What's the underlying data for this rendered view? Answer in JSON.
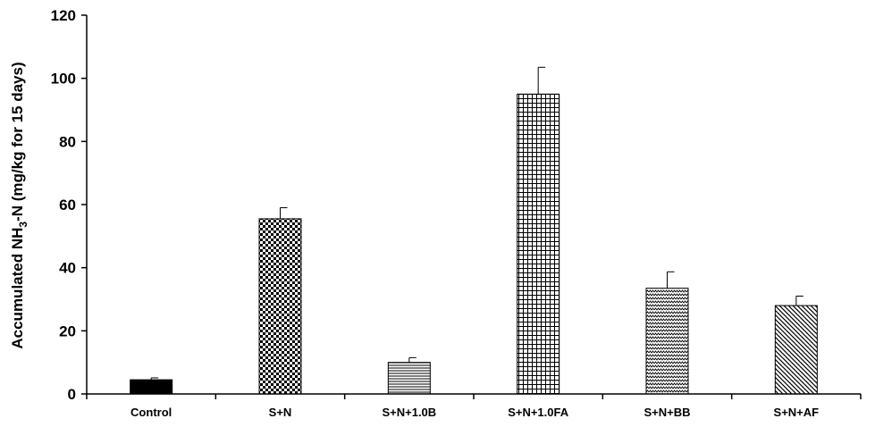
{
  "chart_data": {
    "type": "bar",
    "ylabel_parts": [
      "Accumulated NH",
      "3",
      "-N (mg/kg for 15 days)"
    ],
    "categories": [
      "Control",
      "S+N",
      "S+N+1.0B",
      "S+N+1.0FA",
      "S+N+BB",
      "S+N+AF"
    ],
    "values": [
      4.5,
      55.5,
      10.0,
      95.0,
      33.5,
      28.0
    ],
    "errors": [
      0.6,
      3.5,
      1.5,
      8.5,
      5.2,
      3.0
    ],
    "ylim": [
      0,
      120
    ],
    "yticks": [
      "0",
      "20",
      "40",
      "60",
      "80",
      "100",
      "120"
    ],
    "ytick_values": [
      0,
      20,
      40,
      60,
      80,
      100,
      120
    ],
    "grid": false,
    "legend": "none",
    "patterns": [
      "solid",
      "checker",
      "hlines",
      "grid",
      "zigzag",
      "diagonal"
    ]
  }
}
